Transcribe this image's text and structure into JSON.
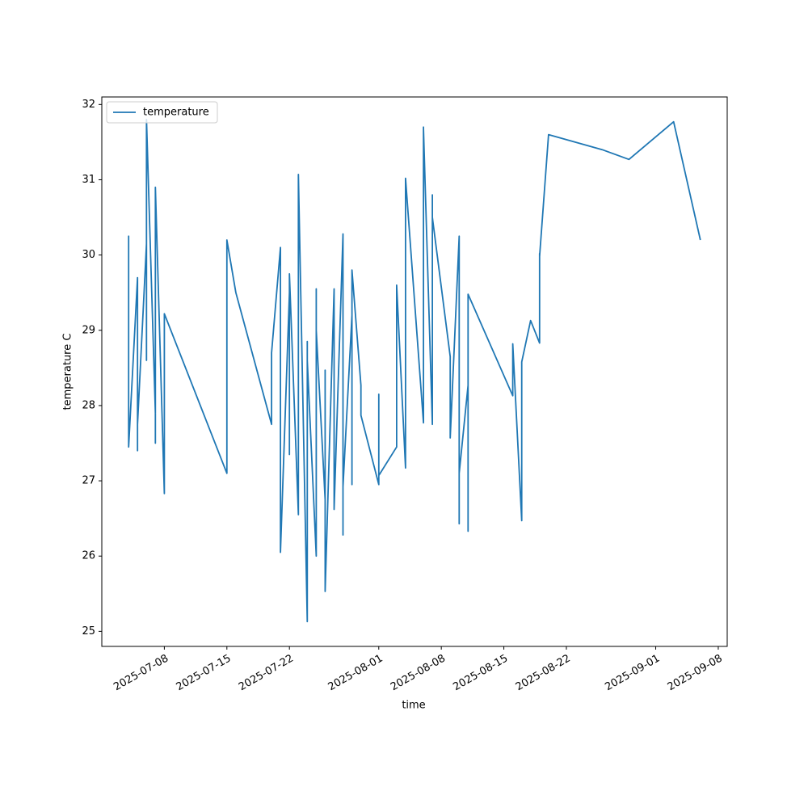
{
  "chart_data": {
    "type": "line",
    "xlabel": "time",
    "ylabel": "temperature C",
    "x": [
      "2025-07-04",
      "2025-07-04",
      "2025-07-04",
      "2025-07-04",
      "2025-07-05",
      "2025-07-05",
      "2025-07-05",
      "2025-07-05",
      "2025-07-06",
      "2025-07-06",
      "2025-07-06",
      "2025-07-07",
      "2025-07-07",
      "2025-07-07",
      "2025-07-07",
      "2025-07-07",
      "2025-07-08",
      "2025-07-08",
      "2025-07-15",
      "2025-07-15",
      "2025-07-16",
      "2025-07-20",
      "2025-07-20",
      "2025-07-21",
      "2025-07-21",
      "2025-07-21",
      "2025-07-21",
      "2025-07-22",
      "2025-07-22",
      "2025-07-22",
      "2025-07-23",
      "2025-07-23",
      "2025-07-24",
      "2025-07-24",
      "2025-07-24",
      "2025-07-24",
      "2025-07-25",
      "2025-07-25",
      "2025-07-25",
      "2025-07-25",
      "2025-07-26",
      "2025-07-26",
      "2025-07-26",
      "2025-07-26",
      "2025-07-26",
      "2025-07-27",
      "2025-07-27",
      "2025-07-28",
      "2025-07-28",
      "2025-07-28",
      "2025-07-28",
      "2025-07-29",
      "2025-07-29",
      "2025-07-29",
      "2025-07-30",
      "2025-07-30",
      "2025-08-01",
      "2025-08-01",
      "2025-08-01",
      "2025-08-03",
      "2025-08-03",
      "2025-08-04",
      "2025-08-04",
      "2025-08-06",
      "2025-08-06",
      "2025-08-06",
      "2025-08-07",
      "2025-08-07",
      "2025-08-07",
      "2025-08-09",
      "2025-08-09",
      "2025-08-10",
      "2025-08-10",
      "2025-08-10",
      "2025-08-10",
      "2025-08-11",
      "2025-08-11",
      "2025-08-11",
      "2025-08-11",
      "2025-08-16",
      "2025-08-16",
      "2025-08-16",
      "2025-08-17",
      "2025-08-17",
      "2025-08-17",
      "2025-08-17",
      "2025-08-17",
      "2025-08-18",
      "2025-08-19",
      "2025-08-19",
      "2025-08-19",
      "2025-08-20",
      "2025-08-26",
      "2025-08-29",
      "2025-09-03",
      "2025-09-06"
    ],
    "series": [
      {
        "name": "temperature",
        "color": "#1f77b4",
        "values": [
          29.3,
          28.23,
          30.25,
          27.45,
          29.7,
          27.4,
          27.9,
          27.75,
          30.15,
          28.6,
          31.8,
          27.9,
          29.4,
          27.5,
          28.1,
          30.9,
          26.83,
          29.22,
          27.1,
          30.2,
          29.5,
          27.75,
          28.7,
          30.1,
          27.2,
          28.1,
          26.05,
          29.5,
          27.35,
          29.75,
          26.55,
          31.07,
          25.13,
          28.85,
          25.85,
          28.6,
          26.0,
          29.55,
          27.5,
          29.0,
          26.75,
          28.47,
          27.02,
          27.02,
          25.53,
          29.55,
          26.62,
          30.28,
          26.28,
          28.97,
          26.92,
          29.2,
          26.95,
          29.8,
          28.27,
          27.87,
          26.95,
          28.15,
          27.07,
          27.45,
          29.6,
          27.17,
          31.02,
          27.77,
          31.7,
          31.68,
          27.75,
          30.8,
          30.5,
          28.65,
          27.57,
          30.25,
          26.43,
          29.28,
          27.1,
          28.27,
          28.25,
          26.33,
          29.48,
          28.13,
          28.78,
          28.82,
          26.47,
          27.7,
          27.92,
          27.65,
          28.58,
          29.13,
          28.83,
          30.02,
          29.98,
          31.6,
          31.4,
          31.27,
          31.77,
          30.2
        ]
      }
    ],
    "xlim": [
      "2025-07-01",
      "2025-09-09"
    ],
    "xticks": [
      "2025-07-08",
      "2025-07-15",
      "2025-07-22",
      "2025-08-01",
      "2025-08-08",
      "2025-08-15",
      "2025-08-22",
      "2025-09-01",
      "2025-09-08"
    ],
    "ylim": [
      24.8,
      32.1
    ],
    "yticks": [
      25,
      26,
      27,
      28,
      29,
      30,
      31,
      32
    ],
    "legend": "upper left"
  }
}
